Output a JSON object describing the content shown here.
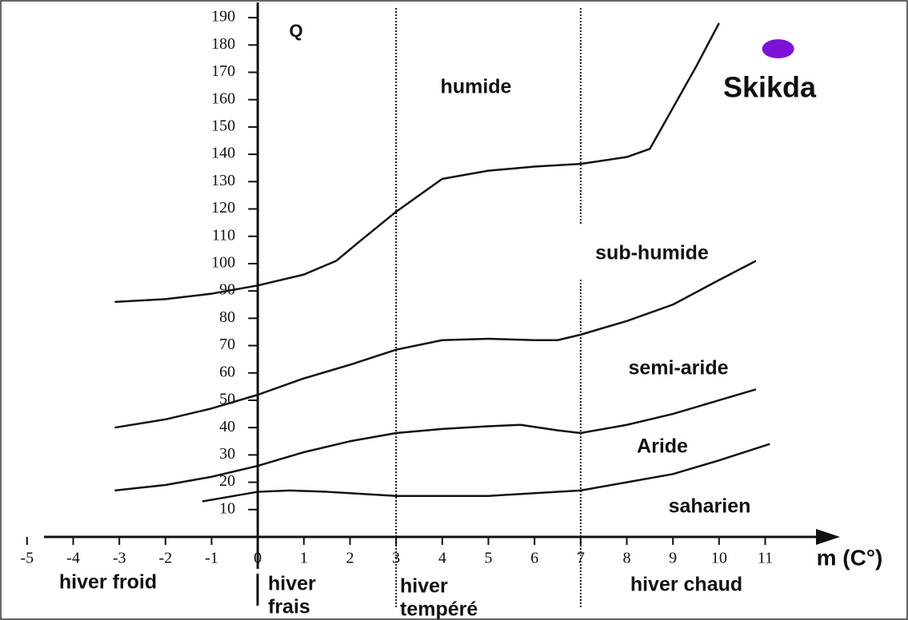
{
  "chart_data": {
    "type": "line",
    "y_label": "Q",
    "x_label": "m (C°)",
    "xlim": [
      -5.5,
      12.5
    ],
    "ylim": [
      0,
      195
    ],
    "xticks": [
      -5,
      -4,
      -3,
      -2,
      -1,
      0,
      1,
      2,
      3,
      4,
      5,
      6,
      7,
      8,
      9,
      10,
      11
    ],
    "yticks": [
      10,
      20,
      30,
      40,
      50,
      60,
      70,
      80,
      90,
      100,
      110,
      120,
      130,
      140,
      150,
      160,
      170,
      180,
      190
    ],
    "series": [
      {
        "color": "#111111",
        "x": [
          -3.1,
          -2,
          -1,
          0,
          1,
          1.7,
          2.2,
          3,
          4,
          5,
          6,
          7,
          8,
          8.5,
          9,
          9.5,
          10
        ],
        "values": [
          86,
          87,
          89,
          92,
          96,
          101,
          108,
          119,
          131,
          134,
          135.5,
          136.5,
          139,
          142,
          157,
          172,
          188
        ]
      },
      {
        "color": "#111111",
        "x": [
          -3.1,
          -2,
          -1,
          0,
          1,
          2,
          3,
          4,
          5,
          6,
          6.5,
          7,
          8,
          9,
          10,
          10.8
        ],
        "values": [
          40,
          43,
          47,
          52,
          58,
          63,
          68.5,
          72,
          72.5,
          72,
          72,
          74,
          79,
          85,
          94,
          101
        ]
      },
      {
        "color": "#111111",
        "x": [
          -3.1,
          -2,
          -1,
          0,
          1,
          2,
          3,
          4,
          5,
          5.7,
          6.5,
          7,
          8,
          9,
          10,
          10.8
        ],
        "values": [
          17,
          19,
          22,
          26,
          31,
          35,
          38,
          39.5,
          40.5,
          41,
          39,
          38,
          41,
          45,
          50,
          54
        ]
      },
      {
        "color": "#111111",
        "x": [
          -1.2,
          0,
          0.7,
          1.5,
          2,
          3,
          4,
          5,
          6,
          7,
          8,
          9,
          10,
          11.1
        ],
        "values": [
          13,
          16.5,
          17,
          16.5,
          16,
          15,
          15,
          15,
          16,
          17,
          20,
          23,
          28,
          34
        ]
      }
    ],
    "point": {
      "label": "Skikda",
      "x": 11.28,
      "y": 178.6,
      "color": "#7d12d6"
    },
    "zones": [
      "humide",
      "sub-humide",
      "semi-aride",
      "Aride",
      "saharien"
    ],
    "winters": [
      [
        "hiver froid"
      ],
      [
        "hiver",
        "frais"
      ],
      [
        "hiver",
        "tempéré"
      ],
      [
        "hiver chaud"
      ]
    ]
  }
}
